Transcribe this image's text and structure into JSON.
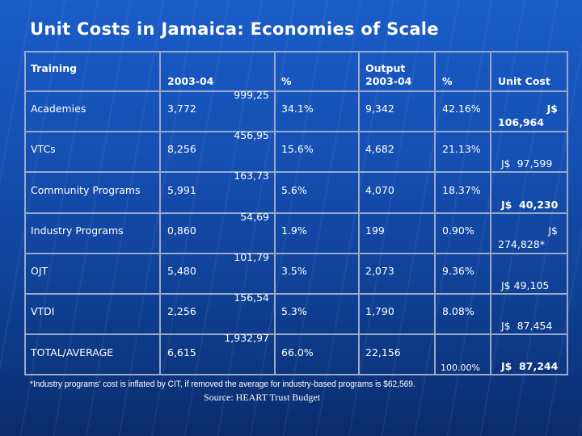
{
  "title": "Unit Costs in Jamaica: Economies of Scale",
  "table": {
    "headers": {
      "training": "Training",
      "enrolment": "2003-04",
      "enrolment_pct": "%",
      "output_line1": "Output",
      "output_line2": "2003-04",
      "output_pct": "%",
      "unit_cost": "Unit Cost"
    },
    "rows": [
      {
        "name": "Academies",
        "enrolment": "3,772",
        "cost": "999,25",
        "enrolment_pct": "34.1%",
        "output": "9,342",
        "output_pct": "42.16%",
        "unit_cost_a": "J$",
        "unit_cost_b": "106,964"
      },
      {
        "name": "VTCs",
        "enrolment": "8,256",
        "cost": "456,95",
        "enrolment_pct": "15.6%",
        "output": "4,682",
        "output_pct": "21.13%",
        "unit_cost": "J$  97,599"
      },
      {
        "name": "Community Programs",
        "enrolment": "5,991",
        "cost": "163,73",
        "enrolment_pct": "5.6%",
        "output": "4,070",
        "output_pct": "18.37%",
        "unit_cost": "J$  40,230"
      },
      {
        "name": "Industry Programs",
        "enrolment": "0,860",
        "cost": "54,69",
        "enrolment_pct": "1.9%",
        "output": "199",
        "output_pct": "0.90%",
        "unit_cost_a": "J$",
        "unit_cost_b": "274,828*"
      },
      {
        "name": "OJT",
        "enrolment": "5,480",
        "cost": "101,79",
        "enrolment_pct": "3.5%",
        "output": "2,073",
        "output_pct": "9.36%",
        "unit_cost": "J$ 49,105"
      },
      {
        "name": "VTDI",
        "enrolment": "2,256",
        "cost": "156,54",
        "enrolment_pct": "5.3%",
        "output": "1,790",
        "output_pct": "8.08%",
        "unit_cost": "J$  87,454"
      },
      {
        "name": "TOTAL/AVERAGE",
        "enrolment": "6,615",
        "cost": "1,932,97",
        "enrolment_pct": "66.0%",
        "output": "22,156",
        "output_pct": "100.00%",
        "unit_cost": "J$  87,244"
      }
    ]
  },
  "footnote": "*Industry programs' cost is inflated by CIT, if removed the average for industry-based programs is $62,569.",
  "source": "Source: HEART Trust Budget",
  "colors": {
    "background_top": "#1a5cc8",
    "background_bottom": "#0a2c6c",
    "grid": "#9aa9c8",
    "text": "#ffffff"
  }
}
